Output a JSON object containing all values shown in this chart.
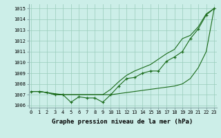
{
  "title": "",
  "xlabel": "Graphe pression niveau de la mer (hPa)",
  "background_color": "#cceee8",
  "grid_color": "#99ccbb",
  "line_color": "#1a6b1a",
  "x": [
    0,
    1,
    2,
    3,
    4,
    5,
    6,
    7,
    8,
    9,
    10,
    11,
    12,
    13,
    14,
    15,
    16,
    17,
    18,
    19,
    20,
    21,
    22,
    23
  ],
  "series1": [
    1007.3,
    1007.3,
    1007.2,
    1007.0,
    1007.0,
    1006.3,
    1006.8,
    1006.7,
    1006.7,
    1006.3,
    1007.0,
    1007.8,
    1008.5,
    1008.6,
    1009.0,
    1009.2,
    1009.2,
    1010.1,
    1010.5,
    1011.0,
    1012.2,
    1013.1,
    1014.4,
    1015.0
  ],
  "series2": [
    1007.3,
    1007.3,
    1007.2,
    1007.1,
    1007.0,
    1007.0,
    1007.0,
    1007.0,
    1007.0,
    1007.0,
    1007.0,
    1007.1,
    1007.2,
    1007.3,
    1007.4,
    1007.5,
    1007.6,
    1007.7,
    1007.8,
    1008.0,
    1008.5,
    1009.5,
    1011.0,
    1015.0
  ],
  "series3": [
    1007.3,
    1007.3,
    1007.2,
    1007.0,
    1007.0,
    1007.0,
    1007.0,
    1007.0,
    1007.0,
    1007.0,
    1007.5,
    1008.2,
    1008.8,
    1009.2,
    1009.5,
    1009.8,
    1010.3,
    1010.8,
    1011.2,
    1012.2,
    1012.5,
    1013.3,
    1014.5,
    1015.0
  ],
  "ylim": [
    1005.8,
    1015.4
  ],
  "yticks": [
    1006,
    1007,
    1008,
    1009,
    1010,
    1011,
    1012,
    1013,
    1014,
    1015
  ],
  "xticks": [
    0,
    1,
    2,
    3,
    4,
    5,
    6,
    7,
    8,
    9,
    10,
    11,
    12,
    13,
    14,
    15,
    16,
    17,
    18,
    19,
    20,
    21,
    22,
    23
  ],
  "tick_fontsize": 5.0,
  "xlabel_fontsize": 6.5,
  "marker": "+",
  "markersize": 3.5,
  "linewidth": 0.8
}
